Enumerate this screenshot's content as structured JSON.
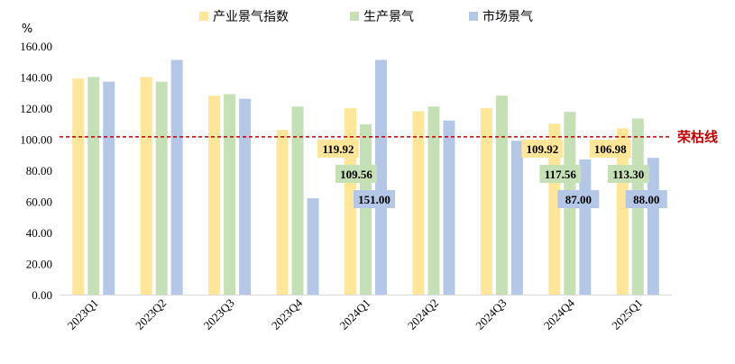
{
  "chart_data": {
    "type": "bar",
    "y_unit": "%",
    "ylim": [
      0,
      160
    ],
    "y_ticks": [
      "0.00",
      "20.00",
      "40.00",
      "60.00",
      "80.00",
      "100.00",
      "120.00",
      "140.00",
      "160.00"
    ],
    "categories": [
      "2023Q1",
      "2023Q2",
      "2023Q3",
      "2023Q4",
      "2024Q1",
      "2024Q2",
      "2024Q3",
      "2024Q4",
      "2025Q1"
    ],
    "series": [
      {
        "name": "产业景气指数",
        "color": "#ffe699",
        "values": [
          139,
          140,
          128,
          106,
          119.92,
          118,
          120,
          109.92,
          106.98
        ]
      },
      {
        "name": "生产景气",
        "color": "#c5e0b4",
        "values": [
          140,
          137,
          129,
          121,
          109.56,
          121,
          128,
          117.56,
          113.3
        ]
      },
      {
        "name": "市场景气",
        "color": "#b4c7e7",
        "values": [
          137,
          151,
          126,
          62,
          151,
          112,
          99,
          87,
          88
        ]
      }
    ],
    "reference_line": {
      "value": 101.5,
      "label": "荣枯线",
      "color": "#c00000"
    },
    "data_labels": [
      {
        "category": "2024Q1",
        "series": 0,
        "text": "119.92"
      },
      {
        "category": "2024Q1",
        "series": 1,
        "text": "109.56"
      },
      {
        "category": "2024Q1",
        "series": 2,
        "text": "151.00"
      },
      {
        "category": "2024Q4",
        "series": 0,
        "text": "109.92"
      },
      {
        "category": "2024Q4",
        "series": 1,
        "text": "117.56"
      },
      {
        "category": "2024Q4",
        "series": 2,
        "text": "87.00"
      },
      {
        "category": "2025Q1",
        "series": 0,
        "text": "106.98"
      },
      {
        "category": "2025Q1",
        "series": 1,
        "text": "113.30"
      },
      {
        "category": "2025Q1",
        "series": 2,
        "text": "88.00"
      }
    ],
    "legend_position": "top-center",
    "grid": false
  }
}
